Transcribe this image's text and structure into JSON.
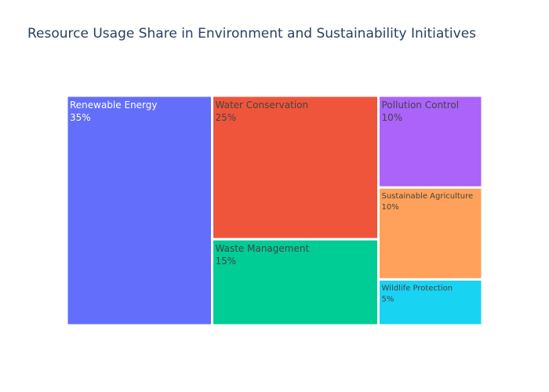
{
  "chart_data": {
    "type": "treemap",
    "title": "Resource Usage Share in Environment and Sustainability Initiatives",
    "items": [
      {
        "label": "Renewable Energy",
        "value": 35,
        "text": "35%",
        "color": "#636efa",
        "text_color": "#ffffff"
      },
      {
        "label": "Water Conservation",
        "value": 25,
        "text": "25%",
        "color": "#ef553b",
        "text_color": "#444444"
      },
      {
        "label": "Waste Management",
        "value": 15,
        "text": "15%",
        "color": "#00cc96",
        "text_color": "#444444"
      },
      {
        "label": "Pollution Control",
        "value": 10,
        "text": "10%",
        "color": "#ab63fa",
        "text_color": "#444444"
      },
      {
        "label": "Sustainable Agriculture",
        "value": 10,
        "text": "10%",
        "color": "#ffa15a",
        "text_color": "#444444"
      },
      {
        "label": "Wildlife Protection",
        "value": 5,
        "text": "5%",
        "color": "#19d3f3",
        "text_color": "#444444"
      }
    ]
  }
}
